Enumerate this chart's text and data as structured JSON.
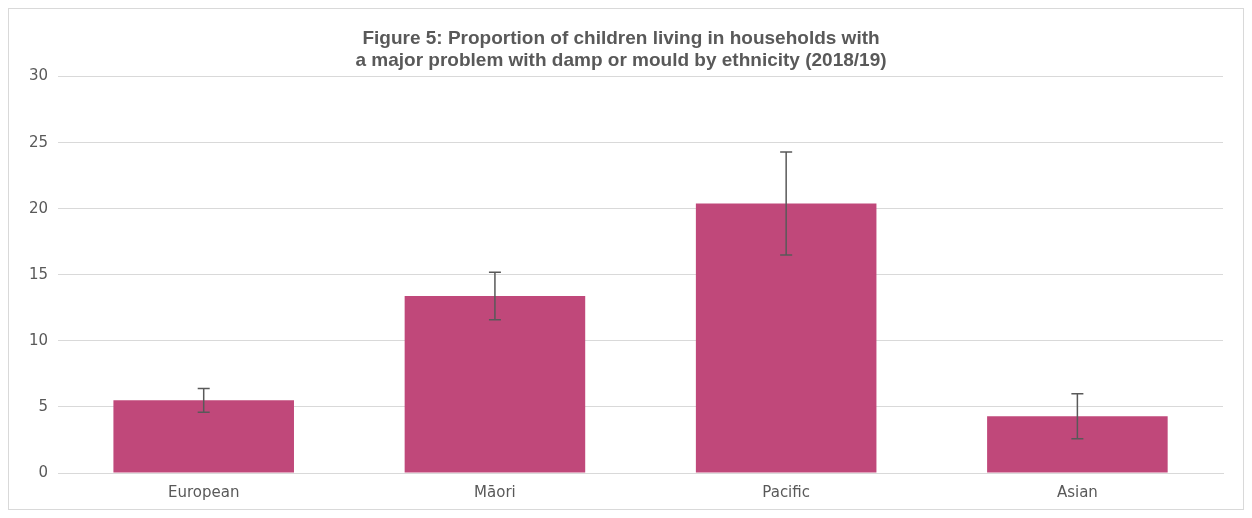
{
  "chart_data": {
    "type": "bar",
    "title": "Figure 5: Proportion of children living in households with a major problem with damp or mould by ethnicity (2018/19)",
    "categories": [
      "European",
      "Māori",
      "Pacific",
      "Asian"
    ],
    "values": [
      5.5,
      13.4,
      20.4,
      4.3
    ],
    "errors": [
      [
        4.6,
        6.4
      ],
      [
        11.6,
        15.2
      ],
      [
        16.5,
        24.3
      ],
      [
        2.6,
        6.0
      ]
    ],
    "color": "#c0487a",
    "ylim": [
      0,
      30
    ],
    "yticks": [
      0,
      5,
      10,
      15,
      20,
      25,
      30
    ],
    "grid": "y",
    "legend": false
  }
}
